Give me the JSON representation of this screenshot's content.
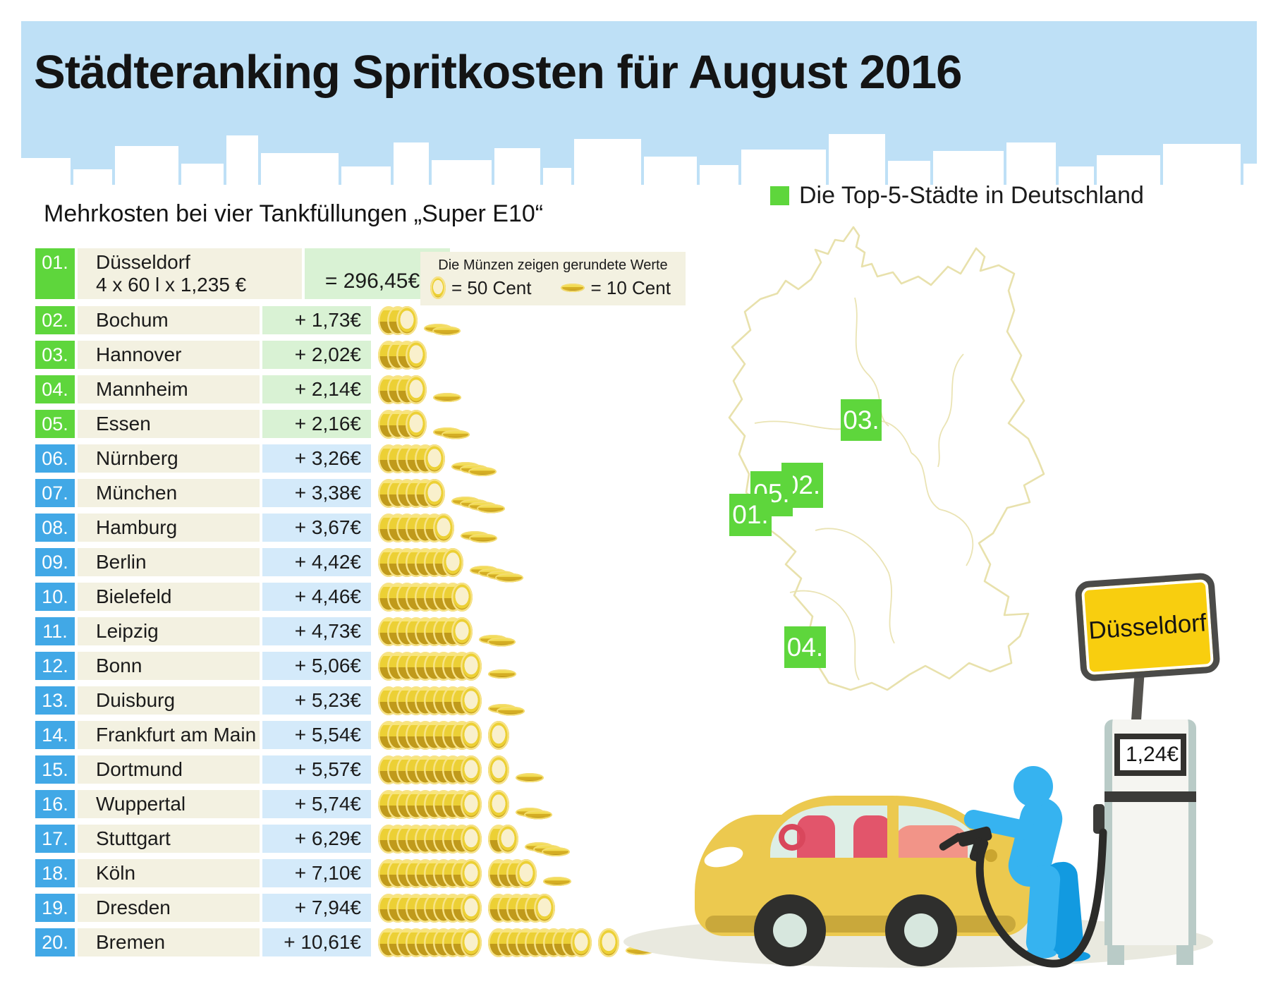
{
  "header": {
    "title": "Städteranking Spritkosten für August 2016"
  },
  "left": {
    "subtitle": "Mehrkosten bei vier Tankfüllungen „Super E10“",
    "coin_legend": {
      "note": "Die Münzen zeigen gerundete Werte",
      "coin50": "= 50 Cent",
      "coin10": "= 10 Cent"
    },
    "ranking": [
      {
        "rank": "01.",
        "city": "Düsseldorf",
        "formula": "4 x 60 l x 1,235 €",
        "value": "= 296,45€",
        "top5": true,
        "coins50": 0,
        "coins10": 0
      },
      {
        "rank": "02.",
        "city": "Bochum",
        "value": "+ 1,73€",
        "top5": true,
        "coins50": 3,
        "coins10": 2
      },
      {
        "rank": "03.",
        "city": "Hannover",
        "value": "+ 2,02€",
        "top5": true,
        "coins50": 4,
        "coins10": 0
      },
      {
        "rank": "04.",
        "city": "Mannheim",
        "value": "+ 2,14€",
        "top5": true,
        "coins50": 4,
        "coins10": 1
      },
      {
        "rank": "05.",
        "city": "Essen",
        "value": "+ 2,16€",
        "top5": true,
        "coins50": 4,
        "coins10": 2
      },
      {
        "rank": "06.",
        "city": "Nürnberg",
        "value": "+ 3,26€",
        "top5": false,
        "coins50": 6,
        "coins10": 3
      },
      {
        "rank": "07.",
        "city": "München",
        "value": "+ 3,38€",
        "top5": false,
        "coins50": 6,
        "coins10": 4
      },
      {
        "rank": "08.",
        "city": "Hamburg",
        "value": "+ 3,67€",
        "top5": false,
        "coins50": 7,
        "coins10": 2
      },
      {
        "rank": "09.",
        "city": "Berlin",
        "value": "+ 4,42€",
        "top5": false,
        "coins50": 8,
        "coins10": 4
      },
      {
        "rank": "10.",
        "city": "Bielefeld",
        "value": "+ 4,46€",
        "top5": false,
        "coins50": 9,
        "coins10": 0
      },
      {
        "rank": "11.",
        "city": "Leipzig",
        "value": "+ 4,73€",
        "top5": false,
        "coins50": 9,
        "coins10": 2
      },
      {
        "rank": "12.",
        "city": "Bonn",
        "value": "+ 5,06€",
        "top5": false,
        "coins50": 10,
        "coins10": 1
      },
      {
        "rank": "13.",
        "city": "Duisburg",
        "value": "+ 5,23€",
        "top5": false,
        "coins50": 10,
        "coins10": 2
      },
      {
        "rank": "14.",
        "city": "Frankfurt am Main",
        "value": "+ 5,54€",
        "top5": false,
        "coins50": 11,
        "coins10": 0
      },
      {
        "rank": "15.",
        "city": "Dortmund",
        "value": "+ 5,57€",
        "top5": false,
        "coins50": 11,
        "coins10": 1
      },
      {
        "rank": "16.",
        "city": "Wuppertal",
        "value": "+ 5,74€",
        "top5": false,
        "coins50": 11,
        "coins10": 2
      },
      {
        "rank": "17.",
        "city": "Stuttgart",
        "value": "+ 6,29€",
        "top5": false,
        "coins50": 12,
        "coins10": 3
      },
      {
        "rank": "18.",
        "city": "Köln",
        "value": "+ 7,10€",
        "top5": false,
        "coins50": 14,
        "coins10": 1
      },
      {
        "rank": "19.",
        "city": "Dresden",
        "value": "+ 7,94€",
        "top5": false,
        "coins50": 16,
        "coins10": 0
      },
      {
        "rank": "20.",
        "city": "Bremen",
        "value": "+ 10,61€",
        "top5": false,
        "coins50": 21,
        "coins10": 1
      }
    ]
  },
  "right": {
    "map_legend": "Die Top-5-Städte in Deutschland",
    "markers": [
      {
        "id": "m03",
        "label": "03."
      },
      {
        "id": "m02",
        "label": "02."
      },
      {
        "id": "m05",
        "label": "05."
      },
      {
        "id": "m01",
        "label": "01."
      },
      {
        "id": "m04",
        "label": "04."
      }
    ],
    "sign": "Düsseldorf",
    "pump_price": "1,24€"
  },
  "colors": {
    "sky": "#bee0f6",
    "top5_green": "#5ed63c",
    "rank_blue": "#41a8e6",
    "green_cell": "#d9f2d4",
    "blue_cell": "#d4eafa",
    "cream": "#f3f1e1",
    "coin_gold": "#ecd035",
    "sign_yellow": "#f8ce0f",
    "map_outline": "#e8e1ac"
  },
  "chart_data": {
    "type": "table",
    "title": "Städteranking Spritkosten für August 2016",
    "subtitle": "Mehrkosten bei vier Tankfüllungen „Super E10“",
    "base_city": {
      "rank": 1,
      "city": "Düsseldorf",
      "calculation": "4 x 60 l x 1,235 €",
      "total_eur": 296.45,
      "fuel_price_eur_per_l": 1.24
    },
    "categories": [
      "Bochum",
      "Hannover",
      "Mannheim",
      "Essen",
      "Nürnberg",
      "München",
      "Hamburg",
      "Berlin",
      "Bielefeld",
      "Leipzig",
      "Bonn",
      "Duisburg",
      "Frankfurt am Main",
      "Dortmund",
      "Wuppertal",
      "Stuttgart",
      "Köln",
      "Dresden",
      "Bremen"
    ],
    "values": [
      1.73,
      2.02,
      2.14,
      2.16,
      3.26,
      3.38,
      3.67,
      4.42,
      4.46,
      4.73,
      5.06,
      5.23,
      5.54,
      5.57,
      5.74,
      6.29,
      7.1,
      7.94,
      10.61
    ],
    "unit": "EUR Mehrkosten gegenüber Düsseldorf",
    "note": "Die Münzen zeigen gerundete Werte: 1 stehende Münze = 50 Cent, 1 flache Münze = 10 Cent",
    "top5": [
      "Düsseldorf",
      "Bochum",
      "Hannover",
      "Mannheim",
      "Essen"
    ],
    "legend_position": "top-right"
  }
}
